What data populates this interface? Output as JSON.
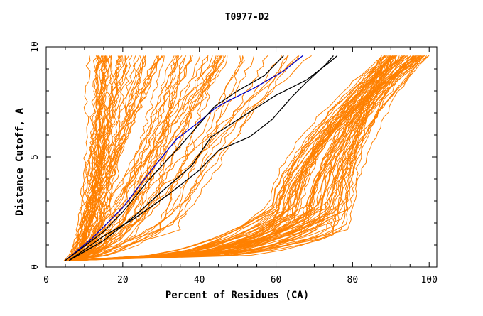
{
  "chart_data": {
    "type": "line",
    "title": "T0977-D2",
    "xlabel": "Percent of Residues (CA)",
    "ylabel": "Distance Cutoff, A",
    "xlim": [
      0,
      102
    ],
    "ylim": [
      0,
      10
    ],
    "x_ticks": [
      0,
      20,
      40,
      60,
      80,
      100
    ],
    "y_ticks": [
      0,
      5,
      10
    ],
    "grid": false,
    "colors": {
      "background_models": "#ff8000",
      "highlight_blue": "#0000cc",
      "highlight_black": "#000000"
    },
    "background_groups": [
      {
        "count": 45,
        "x_start": [
          5,
          9
        ],
        "x_mid": [
          9,
          16
        ],
        "x_end": [
          11,
          30
        ],
        "y_end": 9.6
      },
      {
        "count": 25,
        "x_start": [
          5,
          8
        ],
        "x_mid": [
          16,
          30
        ],
        "x_end": [
          30,
          48
        ],
        "y_end": 9.6
      },
      {
        "count": 12,
        "x_start": [
          5,
          8
        ],
        "x_mid": [
          25,
          40
        ],
        "x_end": [
          45,
          70
        ],
        "y_end": 9.6
      },
      {
        "count": 70,
        "x_start": [
          5,
          8
        ],
        "x_mid": [
          58,
          80
        ],
        "x_end": [
          88,
          100
        ],
        "y_end": 9.6
      }
    ],
    "series": [
      {
        "color": "#0000cc",
        "x": [
          5,
          12,
          20,
          27,
          34,
          40,
          44,
          47,
          54,
          62,
          67
        ],
        "y": [
          0.3,
          1.3,
          2.7,
          4.3,
          5.8,
          6.6,
          7.2,
          7.5,
          8.1,
          8.9,
          9.6
        ]
      },
      {
        "color": "#000000",
        "x": [
          5,
          15,
          20,
          27,
          35,
          41,
          44,
          50,
          57,
          62
        ],
        "y": [
          0.3,
          1.6,
          2.5,
          4.0,
          5.5,
          6.7,
          7.3,
          8.0,
          8.7,
          9.6
        ]
      },
      {
        "color": "#000000",
        "x": [
          6,
          15,
          23,
          30,
          38,
          43,
          51,
          60,
          68,
          74,
          76
        ],
        "y": [
          0.3,
          1.2,
          2.3,
          3.4,
          4.6,
          5.9,
          6.8,
          7.8,
          8.5,
          9.3,
          9.6
        ]
      },
      {
        "color": "#000000",
        "x": [
          6,
          15,
          23,
          32,
          40,
          45,
          53,
          59,
          64,
          68,
          73,
          75
        ],
        "y": [
          0.3,
          1.4,
          2.2,
          3.3,
          4.4,
          5.3,
          5.9,
          6.7,
          7.7,
          8.4,
          9.2,
          9.6
        ]
      }
    ]
  }
}
